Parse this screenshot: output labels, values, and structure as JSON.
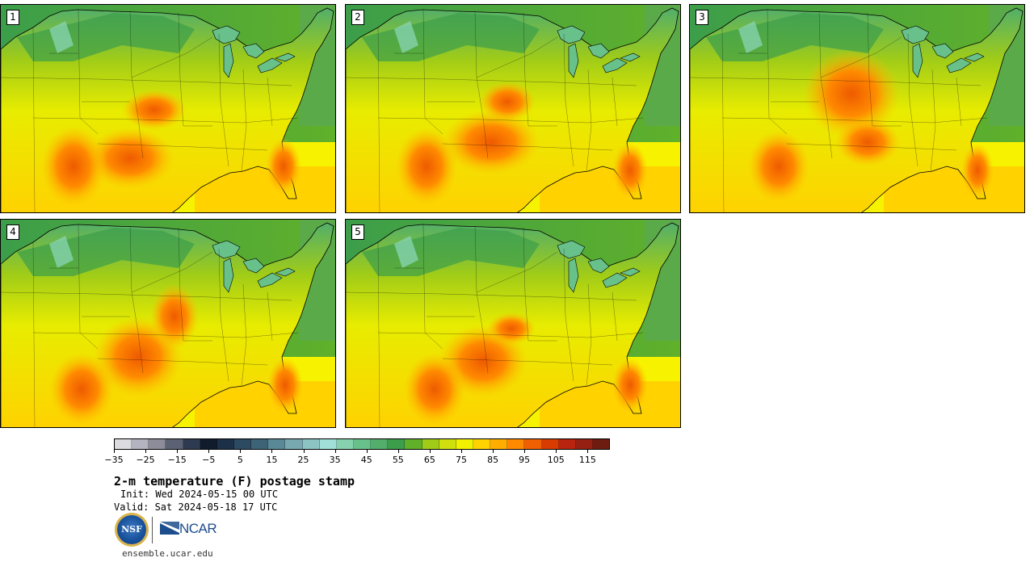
{
  "panels": [
    {
      "label": "1",
      "variant": 0
    },
    {
      "label": "2",
      "variant": 1
    },
    {
      "label": "3",
      "variant": 2
    },
    {
      "label": "4",
      "variant": 3
    },
    {
      "label": "5",
      "variant": 4
    }
  ],
  "colorbar": {
    "colors": [
      "#dcdce0",
      "#b4b4c0",
      "#8c8c9a",
      "#5c6274",
      "#2e3a52",
      "#101c2c",
      "#1c3048",
      "#2c4a62",
      "#3c6476",
      "#5a8896",
      "#78a8b0",
      "#8cc4c4",
      "#a0e0d8",
      "#86d2ae",
      "#68c08a",
      "#52ae6a",
      "#3c9e4a",
      "#60b02a",
      "#a0cc18",
      "#d0e00c",
      "#f2f200",
      "#ffd200",
      "#ffae00",
      "#ff8a00",
      "#f06000",
      "#d83c00",
      "#b82410",
      "#962012",
      "#6e1c10"
    ],
    "tick_labels": [
      "−35",
      "−25",
      "−15",
      "−5",
      "5",
      "15",
      "25",
      "35",
      "45",
      "55",
      "65",
      "75",
      "85",
      "95",
      "105",
      "115"
    ]
  },
  "title": "2-m temperature (F) postage stamp",
  "init": "Init: Wed 2024-05-15 00 UTC",
  "valid": "Valid: Sat 2024-05-18 17 UTC",
  "logos": {
    "nsf": "NSF",
    "ncar": "NCAR"
  },
  "website": "ensemble.ucar.edu"
}
